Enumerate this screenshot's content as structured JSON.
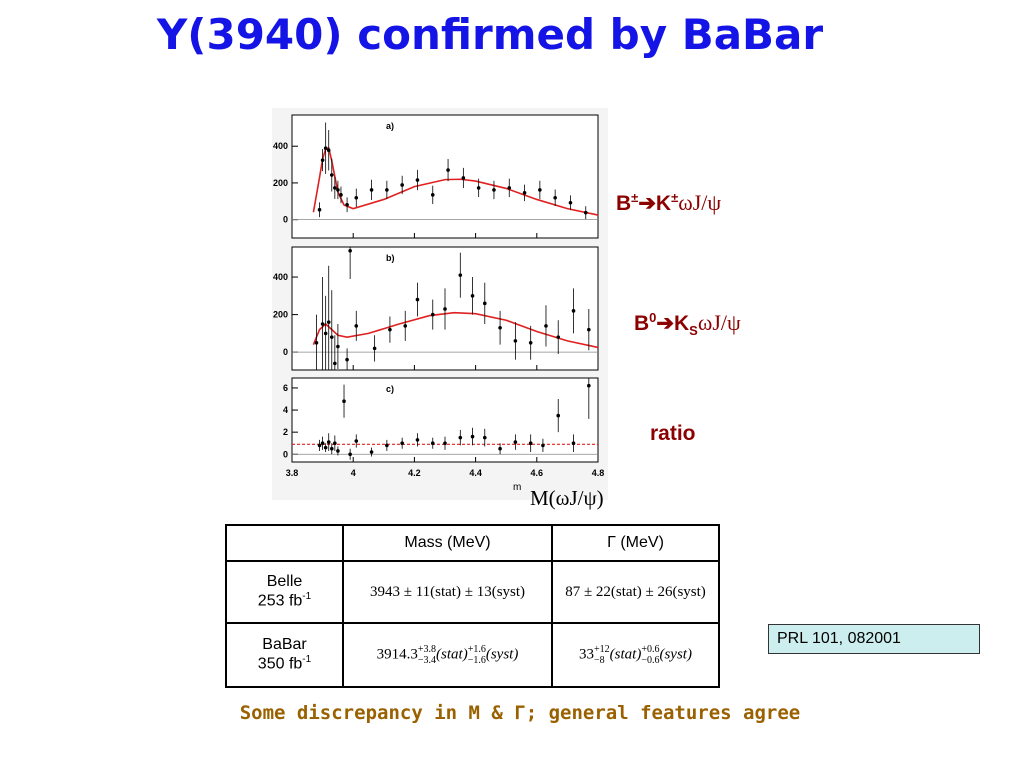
{
  "title": "Y(3940) confirmed by BaBar",
  "figure": {
    "xlim": [
      3.8,
      4.8
    ],
    "xticks": [
      3.8,
      4,
      4.2,
      4.4,
      4.6,
      4.8
    ],
    "x_label": "m",
    "axis_title": "M(ωJ/ψ)",
    "panels": [
      {
        "label": "a)",
        "ylim": [
          -100,
          570
        ],
        "yticks": [
          400,
          200,
          0
        ],
        "x": [
          3.89,
          3.9,
          3.91,
          3.92,
          3.93,
          3.94,
          3.95,
          3.96,
          3.98,
          4.01,
          4.06,
          4.11,
          4.16,
          4.21,
          4.26,
          4.31,
          4.36,
          4.41,
          4.46,
          4.51,
          4.56,
          4.61,
          4.66,
          4.71,
          4.76
        ],
        "y": [
          54,
          324,
          389,
          378,
          243,
          173,
          162,
          135,
          81,
          119,
          162,
          162,
          189,
          216,
          135,
          270,
          227,
          173,
          162,
          173,
          146,
          162,
          119,
          92,
          38
        ],
        "err": [
          40,
          60,
          140,
          110,
          90,
          60,
          50,
          45,
          40,
          50,
          55,
          50,
          50,
          55,
          50,
          60,
          55,
          50,
          50,
          50,
          45,
          50,
          45,
          40,
          35
        ],
        "fit_x": [
          3.87,
          3.89,
          3.9,
          3.91,
          3.92,
          3.93,
          3.95,
          3.97,
          4.0,
          4.1,
          4.2,
          4.3,
          4.35,
          4.4,
          4.5,
          4.6,
          4.7,
          4.8
        ],
        "fit_y": [
          40,
          230,
          330,
          385,
          390,
          320,
          150,
          80,
          60,
          110,
          180,
          218,
          220,
          210,
          170,
          110,
          60,
          25
        ]
      },
      {
        "label": "b)",
        "ylim": [
          -95,
          560
        ],
        "yticks": [
          400,
          200,
          0
        ],
        "x": [
          3.88,
          3.9,
          3.91,
          3.92,
          3.93,
          3.94,
          3.95,
          3.98,
          3.99,
          4.01,
          4.07,
          4.12,
          4.17,
          4.21,
          4.26,
          4.3,
          4.35,
          4.39,
          4.43,
          4.48,
          4.53,
          4.58,
          4.63,
          4.67,
          4.72,
          4.77
        ],
        "y": [
          50,
          150,
          100,
          160,
          80,
          -60,
          30,
          -40,
          540,
          140,
          20,
          120,
          140,
          280,
          200,
          230,
          410,
          300,
          260,
          130,
          60,
          50,
          140,
          80,
          220,
          120
        ],
        "err": [
          150,
          250,
          200,
          300,
          250,
          150,
          120,
          60,
          150,
          80,
          70,
          70,
          80,
          90,
          80,
          110,
          120,
          100,
          110,
          90,
          100,
          90,
          110,
          90,
          120,
          110
        ],
        "fit_x": [
          3.87,
          3.89,
          3.91,
          3.93,
          3.95,
          3.98,
          4.05,
          4.15,
          4.25,
          4.33,
          4.4,
          4.5,
          4.6,
          4.7,
          4.8
        ],
        "fit_y": [
          40,
          120,
          150,
          120,
          90,
          80,
          100,
          150,
          195,
          210,
          205,
          170,
          110,
          60,
          25
        ]
      },
      {
        "label": "c)",
        "ylim": [
          -0.7,
          6.9
        ],
        "yticks": [
          6,
          4,
          2,
          0
        ],
        "x": [
          3.89,
          3.9,
          3.91,
          3.92,
          3.93,
          3.94,
          3.95,
          3.97,
          3.99,
          4.01,
          4.06,
          4.11,
          4.16,
          4.21,
          4.26,
          4.3,
          4.35,
          4.39,
          4.43,
          4.48,
          4.53,
          4.58,
          4.62,
          4.67,
          4.72,
          4.77
        ],
        "y": [
          0.8,
          1.0,
          0.6,
          1.1,
          0.5,
          1.0,
          0.3,
          4.8,
          0.0,
          1.2,
          0.2,
          0.8,
          1.0,
          1.3,
          1.0,
          1.0,
          1.5,
          1.6,
          1.5,
          0.5,
          1.1,
          1.0,
          0.8,
          3.5,
          1.0,
          6.2
        ],
        "err": [
          0.5,
          0.6,
          0.4,
          0.8,
          0.5,
          0.7,
          0.4,
          1.5,
          0.5,
          0.6,
          0.4,
          0.5,
          0.5,
          0.6,
          0.5,
          0.6,
          0.7,
          0.8,
          0.8,
          0.5,
          0.7,
          0.8,
          0.6,
          1.5,
          0.8,
          3.0
        ],
        "fit_level": 0.9
      }
    ]
  },
  "labels": [
    [
      "B",
      "±",
      "➔K",
      "±",
      "ωJ/ψ"
    ],
    [
      "B",
      "0",
      "➔K",
      "S",
      "ωJ/ψ"
    ],
    [
      "ratio"
    ]
  ],
  "table": {
    "header": [
      "Mass (MeV)",
      "Γ (MeV)"
    ],
    "rows": [
      {
        "name": "Belle",
        "lumi": "253 fb",
        "lumi_exp": "-1",
        "mass": "3943 ± 11(stat) ± 13(syst)",
        "width": "87 ± 22(stat) ± 26(syst)"
      },
      {
        "name": "BaBar",
        "lumi": "350 fb",
        "lumi_exp": "-1",
        "mass": {
          "central": "3914.3",
          "stat_up": "+3.8",
          "stat_down": "−3.4",
          "stat": "(stat)",
          "syst_up": "+1.6",
          "syst_down": "−1.6",
          "syst": "(syst)"
        },
        "width": {
          "central": "33",
          "stat_up": "+12",
          "stat_down": "−8",
          "stat": "(stat)",
          "syst_up": "+0.6",
          "syst_down": "−0.6",
          "syst": "(syst)"
        }
      }
    ]
  },
  "reference": "PRL 101, 082001",
  "footer": "Some discrepancy in M & Γ; general features agree"
}
